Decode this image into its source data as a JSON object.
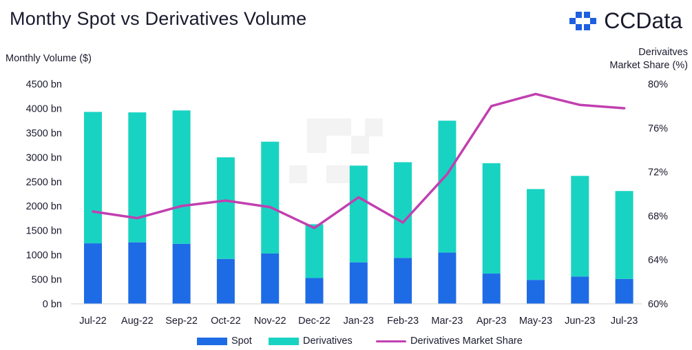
{
  "header": {
    "title": "Monthy Spot vs Derivatives Volume",
    "logo_text": "CCData"
  },
  "axes": {
    "left_label": "Monthly Volume ($)",
    "right_label_line1": "Derivaitves",
    "right_label_line2": "Market Share (%)"
  },
  "colors": {
    "spot": "#1e6be6",
    "derivatives": "#19d3c2",
    "share": "#c13fb0",
    "logo": "#1e5fe0"
  },
  "icons": {
    "logo": "ccdata-logo-icon"
  },
  "chart_data": {
    "type": "bar",
    "stacked": true,
    "categories": [
      "Jul-22",
      "Aug-22",
      "Sep-22",
      "Oct-22",
      "Nov-22",
      "Dec-22",
      "Jan-23",
      "Feb-23",
      "Mar-23",
      "Apr-23",
      "May-23",
      "Jun-23",
      "Jul-23"
    ],
    "series": [
      {
        "name": "Spot",
        "type": "bar",
        "axis": "left",
        "values": [
          1240,
          1260,
          1230,
          920,
          1030,
          530,
          850,
          940,
          1050,
          620,
          490,
          560,
          510
        ]
      },
      {
        "name": "Derivatives",
        "type": "bar",
        "axis": "left",
        "values": [
          2690,
          2660,
          2730,
          2080,
          2290,
          1100,
          1980,
          1960,
          2700,
          2260,
          1860,
          2060,
          1800
        ]
      },
      {
        "name": "Derivatives Market Share",
        "type": "line",
        "axis": "right",
        "values": [
          68.4,
          67.8,
          68.9,
          69.4,
          68.8,
          66.9,
          69.7,
          67.4,
          71.8,
          78.0,
          79.1,
          78.1,
          77.8
        ]
      }
    ],
    "ylim_left": [
      0,
      4500
    ],
    "ylim_right": [
      60,
      80
    ],
    "yticks_left": [
      "0 bn",
      "500 bn",
      "1000 bn",
      "1500 bn",
      "2000 bn",
      "2500 bn",
      "3000 bn",
      "3500 bn",
      "4000 bn",
      "4500 bn"
    ],
    "yticks_right": [
      "60%",
      "64%",
      "68%",
      "72%",
      "76%",
      "80%"
    ],
    "grid": false,
    "legend_position": "bottom"
  }
}
